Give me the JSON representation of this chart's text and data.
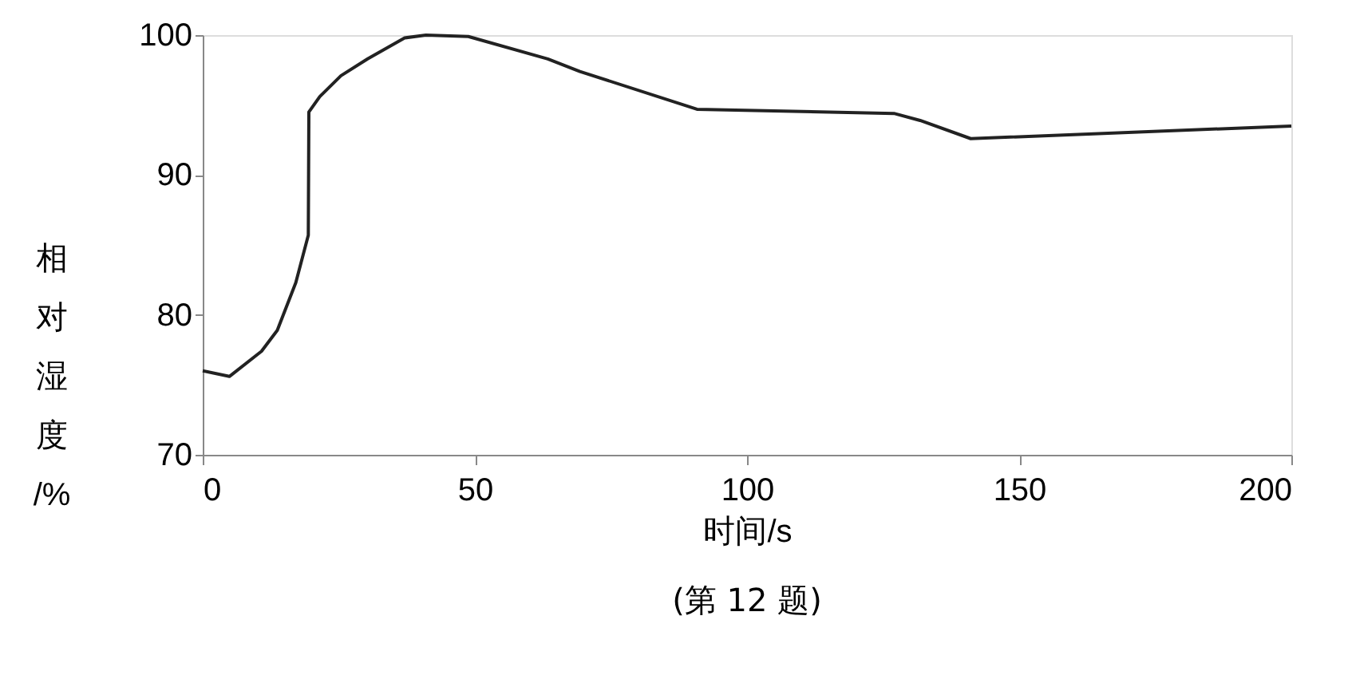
{
  "chart_data": {
    "type": "line",
    "xlabel": "时间/s",
    "ylabel": "相对湿度/%",
    "annotations": [
      "(第 12 题)"
    ],
    "x": [
      0,
      4.9,
      10.8,
      13.7,
      17.1,
      19.4,
      19.5,
      21.5,
      25.4,
      30.3,
      37.1,
      41,
      48.8,
      63.4,
      69.3,
      90.8,
      127,
      131.8,
      141.1,
      200
    ],
    "series": [
      {
        "color": "#222222",
        "values": [
          76.0,
          75.6,
          77.4,
          78.9,
          82.3,
          85.7,
          94.5,
          95.6,
          97.1,
          98.3,
          99.8,
          100,
          99.9,
          98.3,
          97.4,
          94.7,
          94.4,
          93.9,
          92.6,
          93.5
        ]
      }
    ],
    "xlim": [
      0,
      200
    ],
    "xticks": [
      0,
      50,
      100,
      150,
      200
    ],
    "ylim": [
      70,
      100
    ],
    "yticks": [
      70,
      80,
      90,
      100
    ],
    "grid": false,
    "marker": "none",
    "line_style": "solid"
  }
}
